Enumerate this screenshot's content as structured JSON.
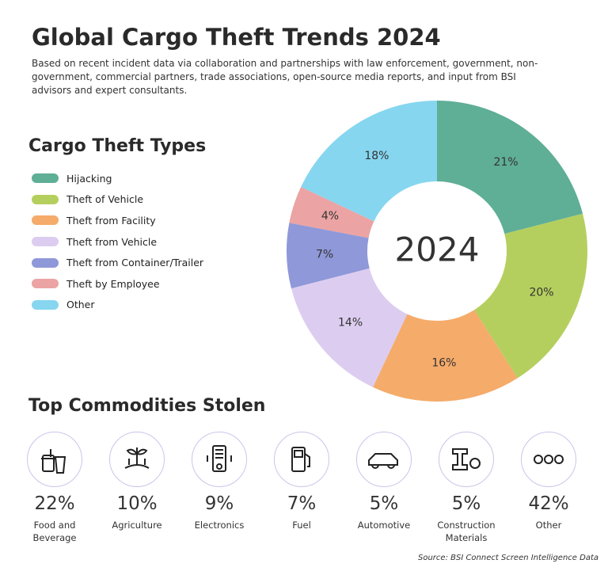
{
  "title": "Global Cargo Theft Trends 2024",
  "subtitle": "Based on recent incident data via collaboration and partnerships with law enforcement, government, non-government, commercial partners, trade associations, open-source media reports, and input from BSI advisors and expert consultants.",
  "chart_data": {
    "type": "donut",
    "legend_title": "Cargo Theft Types",
    "center_label": "2024",
    "categories": [
      "Hijacking",
      "Theft of Vehicle",
      "Theft from Facility",
      "Theft from Vehicle",
      "Theft from Container/Trailer",
      "Theft by Employee",
      "Other"
    ],
    "values": [
      21,
      20,
      16,
      14,
      7,
      4,
      18
    ],
    "value_labels": [
      "21%",
      "20%",
      "16%",
      "14%",
      "7%",
      "4%",
      "18%"
    ],
    "colors": [
      "#5fae96",
      "#b5cf5e",
      "#f5ab6a",
      "#dccdf0",
      "#8f98d8",
      "#eba3a3",
      "#86d6f0"
    ]
  },
  "commodities": {
    "title": "Top Commodities Stolen",
    "items": [
      {
        "name": "Food and Beverage",
        "percent": "22%"
      },
      {
        "name": "Agriculture",
        "percent": "10%"
      },
      {
        "name": "Electronics",
        "percent": "9%"
      },
      {
        "name": "Fuel",
        "percent": "7%"
      },
      {
        "name": "Automotive",
        "percent": "5%"
      },
      {
        "name": "Construction Materials",
        "percent": "5%"
      },
      {
        "name": "Other",
        "percent": "42%"
      }
    ]
  },
  "source": "Source: BSI Connect Screen Intelligence Data"
}
